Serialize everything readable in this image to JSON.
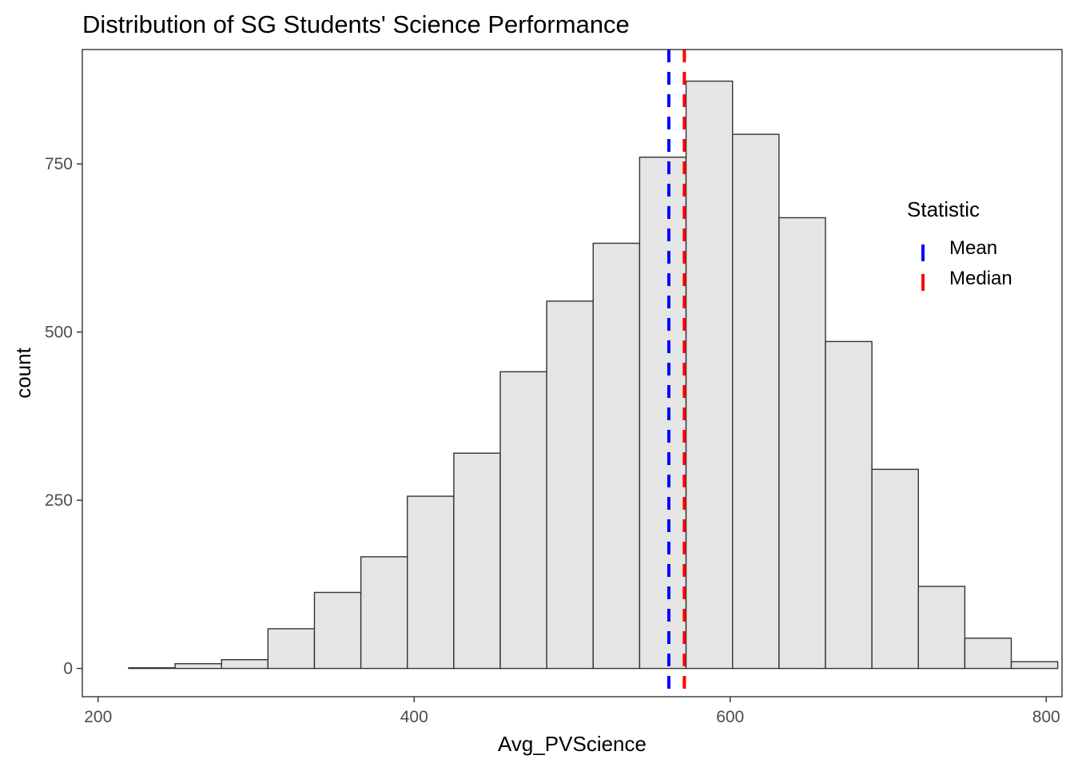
{
  "chart_data": {
    "type": "bar",
    "title": "Distribution of SG Students' Science Performance",
    "xlabel": "Avg_PVScience",
    "ylabel": "count",
    "xlim": [
      190,
      810
    ],
    "ylim": [
      -42,
      920
    ],
    "x_ticks": [
      200,
      400,
      600,
      800
    ],
    "y_ticks": [
      0,
      250,
      500,
      750
    ],
    "bin_width": 29.4,
    "bins": [
      {
        "x0": 219.3,
        "count": 1
      },
      {
        "x0": 248.7,
        "count": 7
      },
      {
        "x0": 278.1,
        "count": 13
      },
      {
        "x0": 307.5,
        "count": 59
      },
      {
        "x0": 336.9,
        "count": 113
      },
      {
        "x0": 366.3,
        "count": 166
      },
      {
        "x0": 395.7,
        "count": 256
      },
      {
        "x0": 425.1,
        "count": 320
      },
      {
        "x0": 454.5,
        "count": 441
      },
      {
        "x0": 483.9,
        "count": 546
      },
      {
        "x0": 513.3,
        "count": 632
      },
      {
        "x0": 542.7,
        "count": 760
      },
      {
        "x0": 572.1,
        "count": 873
      },
      {
        "x0": 601.5,
        "count": 794
      },
      {
        "x0": 630.9,
        "count": 670
      },
      {
        "x0": 660.3,
        "count": 486
      },
      {
        "x0": 689.7,
        "count": 296
      },
      {
        "x0": 719.1,
        "count": 122
      },
      {
        "x0": 748.5,
        "count": 45
      },
      {
        "x0": 777.9,
        "count": 10
      }
    ],
    "bar_fill": "#e5e5e5",
    "bar_stroke": "#333333",
    "reference_lines": [
      {
        "name": "Mean",
        "x": 561.2,
        "color": "#0000ff",
        "linetype": "dashed"
      },
      {
        "name": "Median",
        "x": 571.0,
        "color": "#ff0000",
        "linetype": "dashed"
      }
    ],
    "legend": {
      "title": "Statistic",
      "position": "inside-right",
      "entries": [
        {
          "label": "Mean",
          "color": "#0000ff"
        },
        {
          "label": "Median",
          "color": "#ff0000"
        }
      ]
    },
    "grid": false
  }
}
